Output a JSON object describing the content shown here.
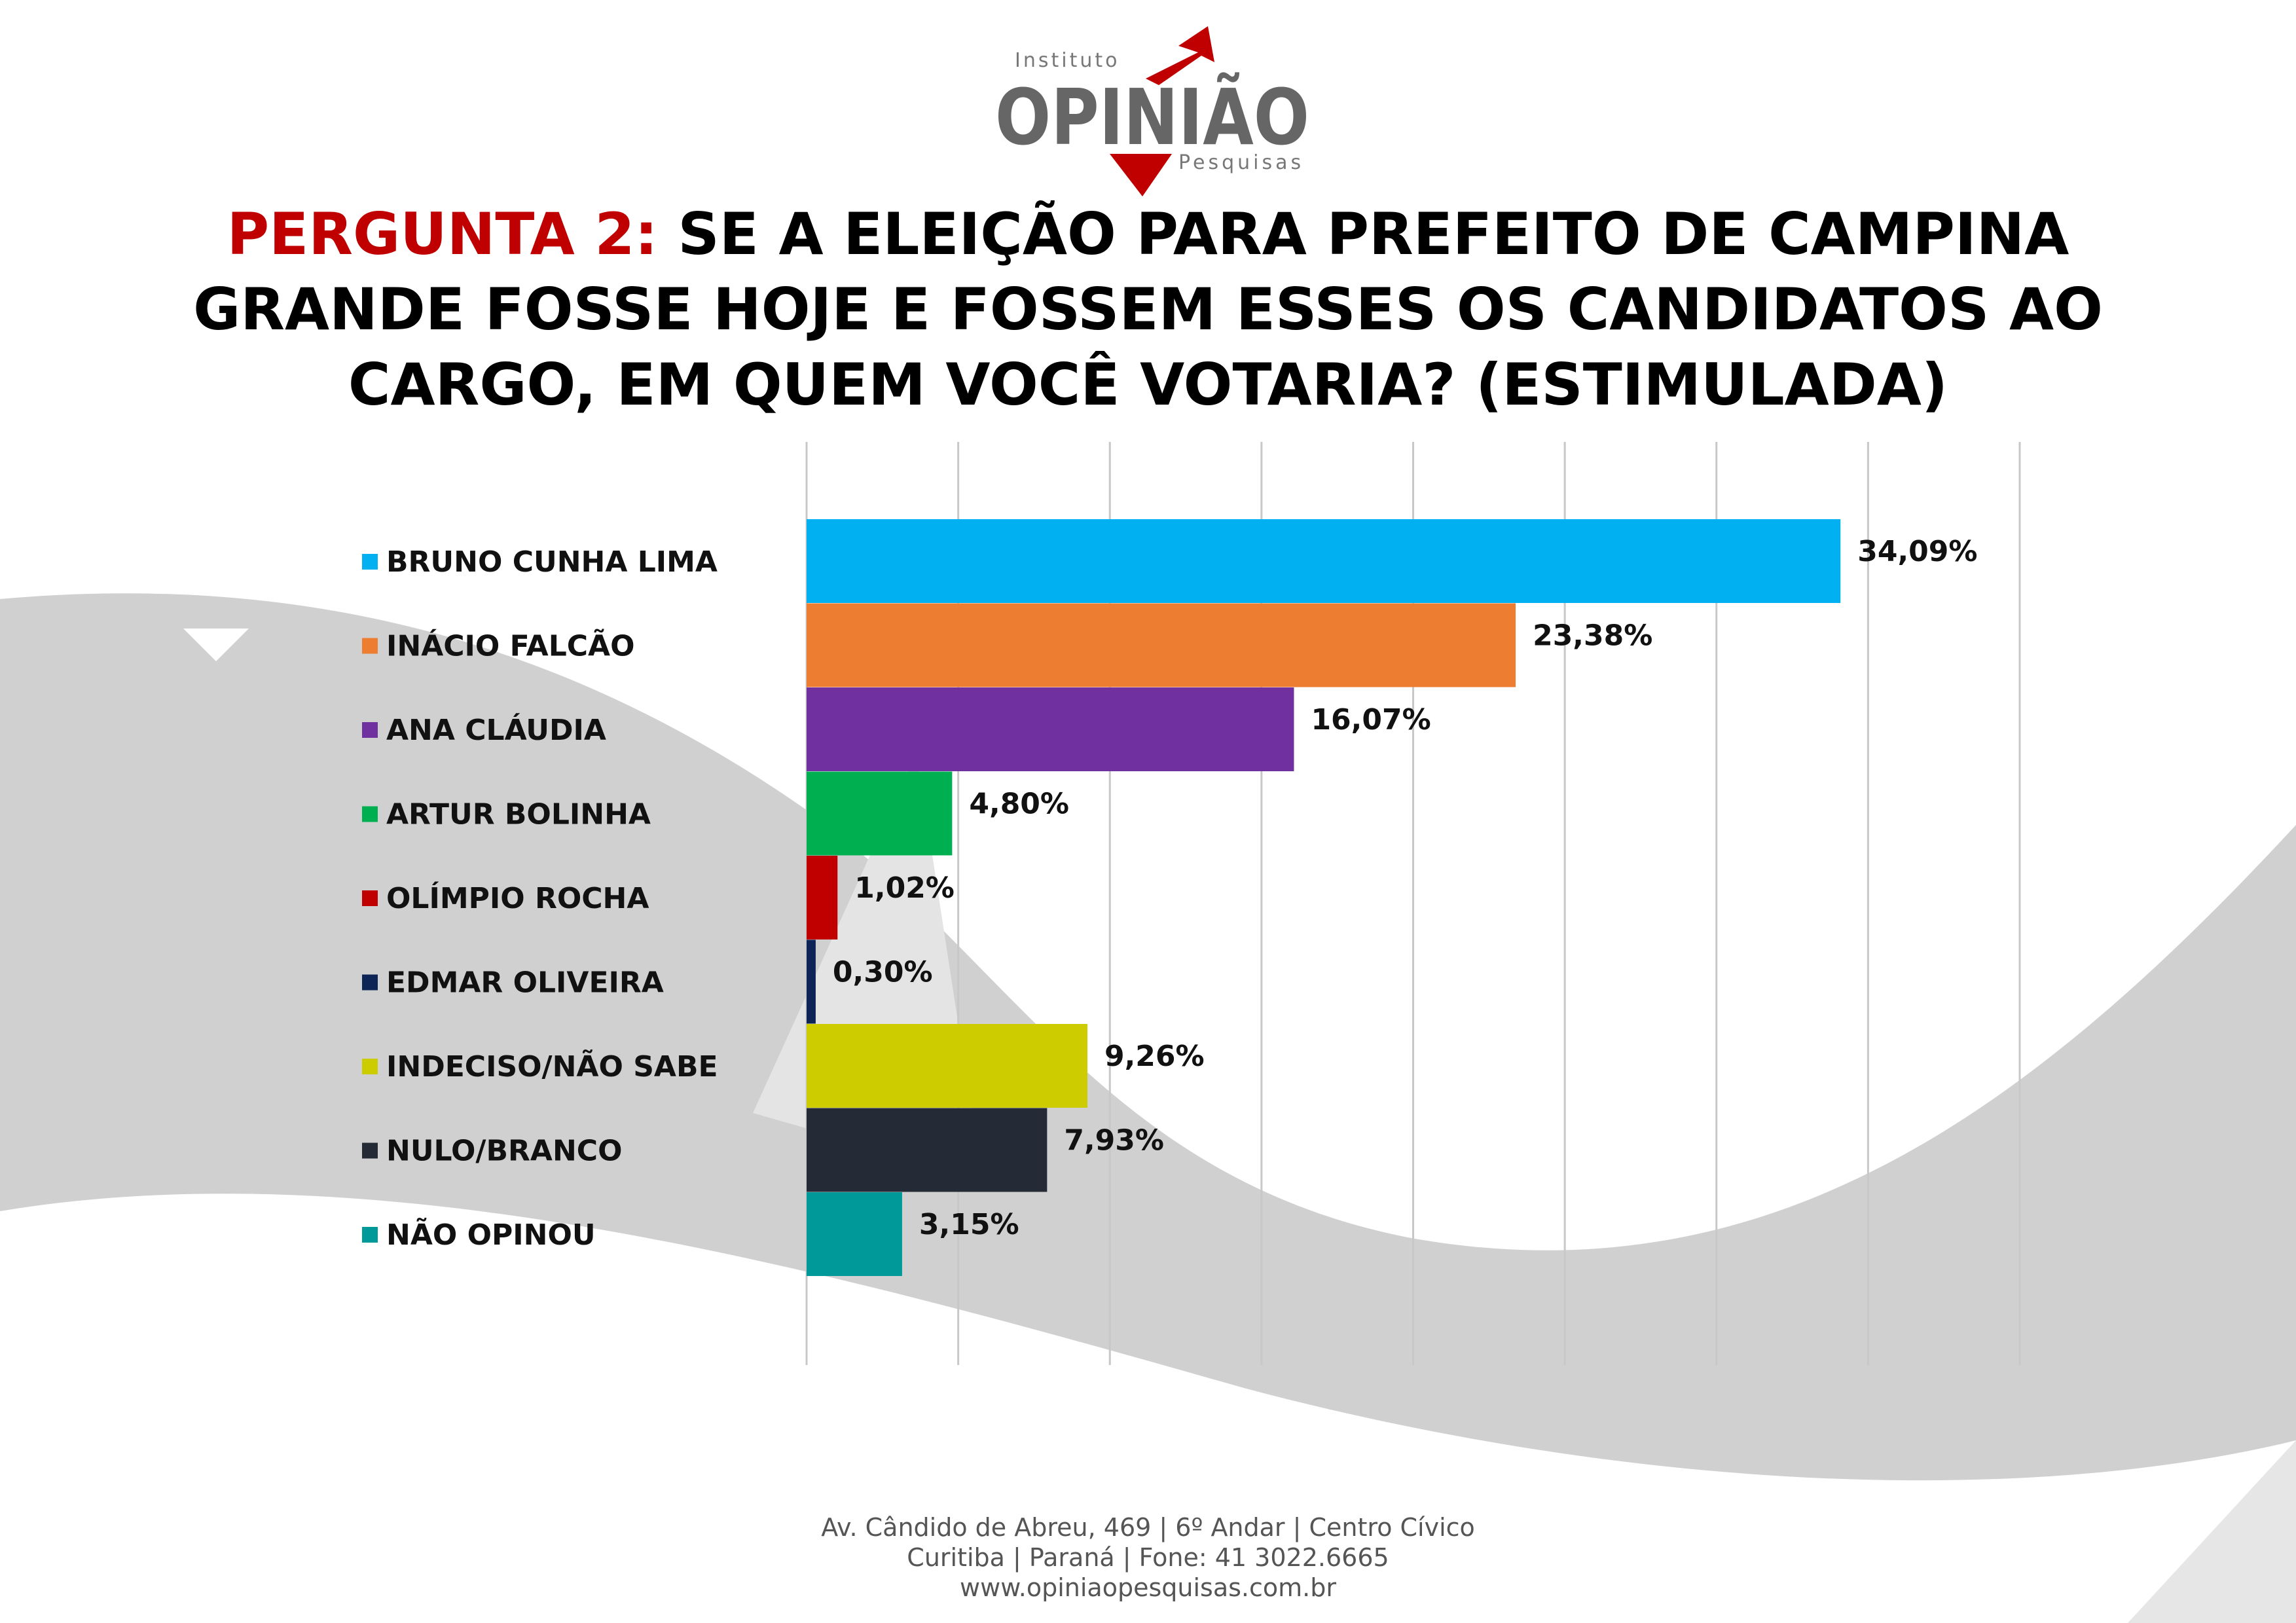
{
  "logo": {
    "top_text": "Instituto",
    "main_text": "OPINIÃO",
    "bottom_text": "Pesquisas"
  },
  "title": {
    "prefix": "PERGUNTA 2:",
    "text": " SE A ELEIÇÃO PARA PREFEITO DE CAMPINA GRANDE FOSSE HOJE E FOSSEM ESSES OS CANDIDATOS AO CARGO, EM QUEM VOCÊ VOTARIA? (ESTIMULADA)"
  },
  "chart_data": {
    "type": "bar",
    "orientation": "horizontal",
    "categories": [
      "BRUNO CUNHA LIMA",
      "INÁCIO FALCÃO",
      "ANA CLÁUDIA",
      "ARTUR BOLINHA",
      "OLÍMPIO ROCHA",
      "EDMAR OLIVEIRA",
      "INDECISO/NÃO SABE",
      "NULO/BRANCO",
      "NÃO OPINOU"
    ],
    "values": [
      34.09,
      23.38,
      16.07,
      4.8,
      1.02,
      0.3,
      9.26,
      7.93,
      3.15
    ],
    "value_labels": [
      "34,09%",
      "23,38%",
      "16,07%",
      "4,80%",
      "1,02%",
      "0,30%",
      "9,26%",
      "7,93%",
      "3,15%"
    ],
    "colors": [
      "#00b0f0",
      "#ed7d31",
      "#7030a0",
      "#00b050",
      "#c00000",
      "#0d2457",
      "#cccc00",
      "#252b36",
      "#009999"
    ],
    "xlim": [
      0,
      40
    ],
    "x_gridlines": [
      0,
      5,
      10,
      15,
      20,
      25,
      30,
      35,
      40
    ],
    "grid": true,
    "legend": "left"
  },
  "footer": {
    "line1": "Av. Cândido de Abreu, 469 | 6º Andar | Centro Cívico",
    "line2": "Curitiba | Paraná | Fone: 41 3022.6665",
    "line3": "www.opiniaopesquisas.com.br"
  }
}
